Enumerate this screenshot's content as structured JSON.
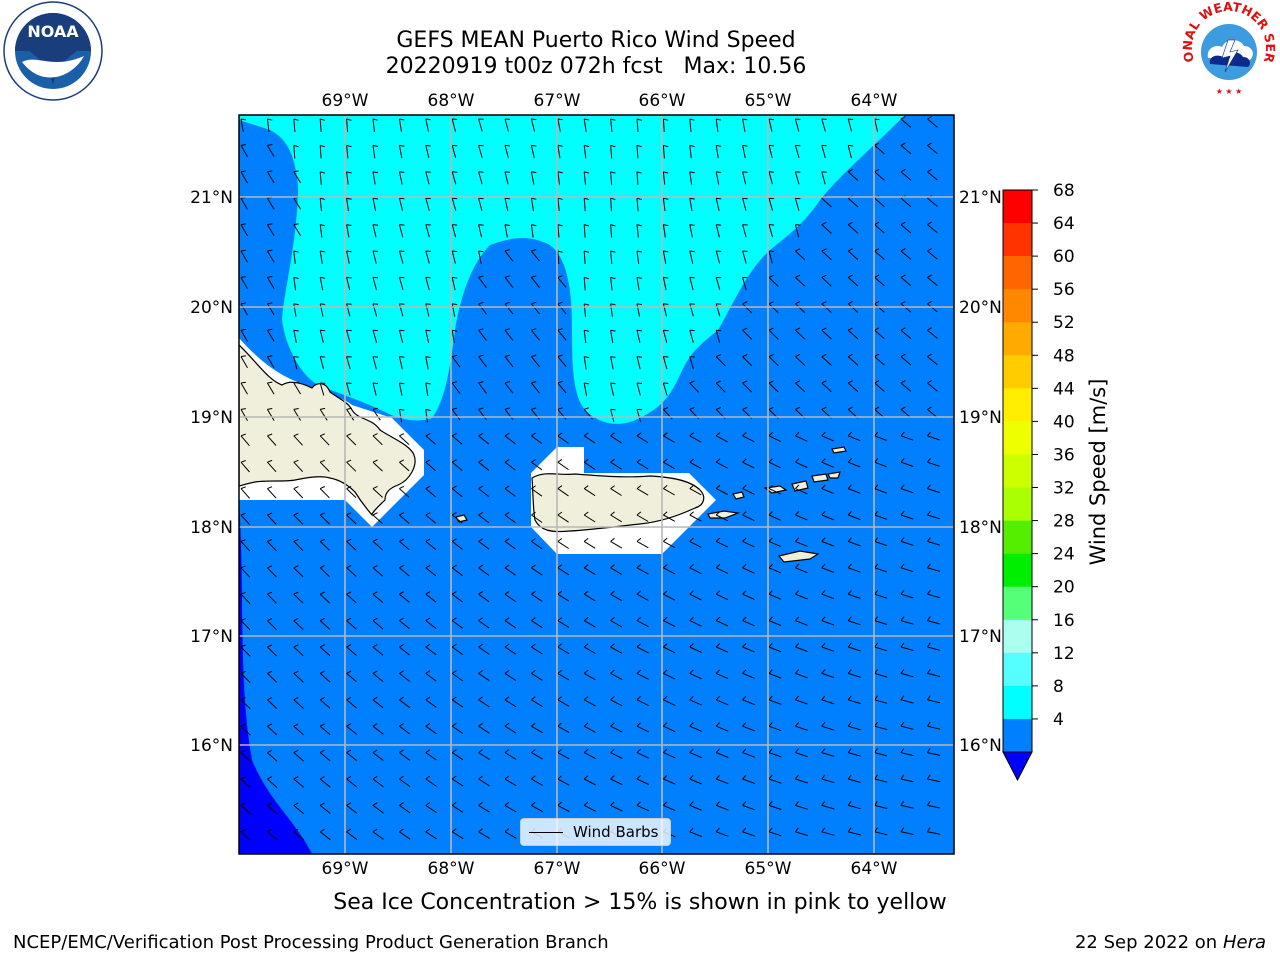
{
  "header": {
    "title": "GEFS MEAN Puerto Rico Wind Speed",
    "subtitle": "20220919 t00z 072h fcst   Max: 10.56"
  },
  "logos": {
    "left": "NOAA",
    "right_ring_text": "NATIONAL WEATHER SERVICE"
  },
  "map": {
    "lon_labels": [
      "69°W",
      "68°W",
      "67°W",
      "66°W",
      "65°W",
      "64°W"
    ],
    "lat_labels": [
      "21°N",
      "20°N",
      "19°N",
      "18°N",
      "17°N",
      "16°N"
    ],
    "legend_label": "Wind Barbs",
    "colors": {
      "ocean_4_8": "#0080ff",
      "band_8_12": "#00ffff",
      "below_4": "#0000ff",
      "land": "#efefdb",
      "grid": "#b8b8b8"
    }
  },
  "colorbar": {
    "label": "Wind Speed [m/s]",
    "ticks": [
      "68",
      "64",
      "60",
      "56",
      "52",
      "48",
      "44",
      "40",
      "36",
      "32",
      "28",
      "24",
      "20",
      "16",
      "12",
      "8",
      "4"
    ],
    "colors": [
      "#ff0000",
      "#ff3300",
      "#ff6600",
      "#ff8800",
      "#ffaa00",
      "#ffcc00",
      "#ffee00",
      "#eeff00",
      "#ccff00",
      "#aaff00",
      "#55ee00",
      "#00ee00",
      "#55ff77",
      "#aaffee",
      "#55ffff",
      "#00ffff",
      "#0080ff"
    ],
    "under_color": "#0000ff"
  },
  "footer": {
    "note": "Sea Ice Concentration > 15% is shown in pink to yellow",
    "left": "NCEP/EMC/Verification Post Processing Product Generation Branch",
    "right_date": "22 Sep 2022 on",
    "right_host": "Hera"
  }
}
